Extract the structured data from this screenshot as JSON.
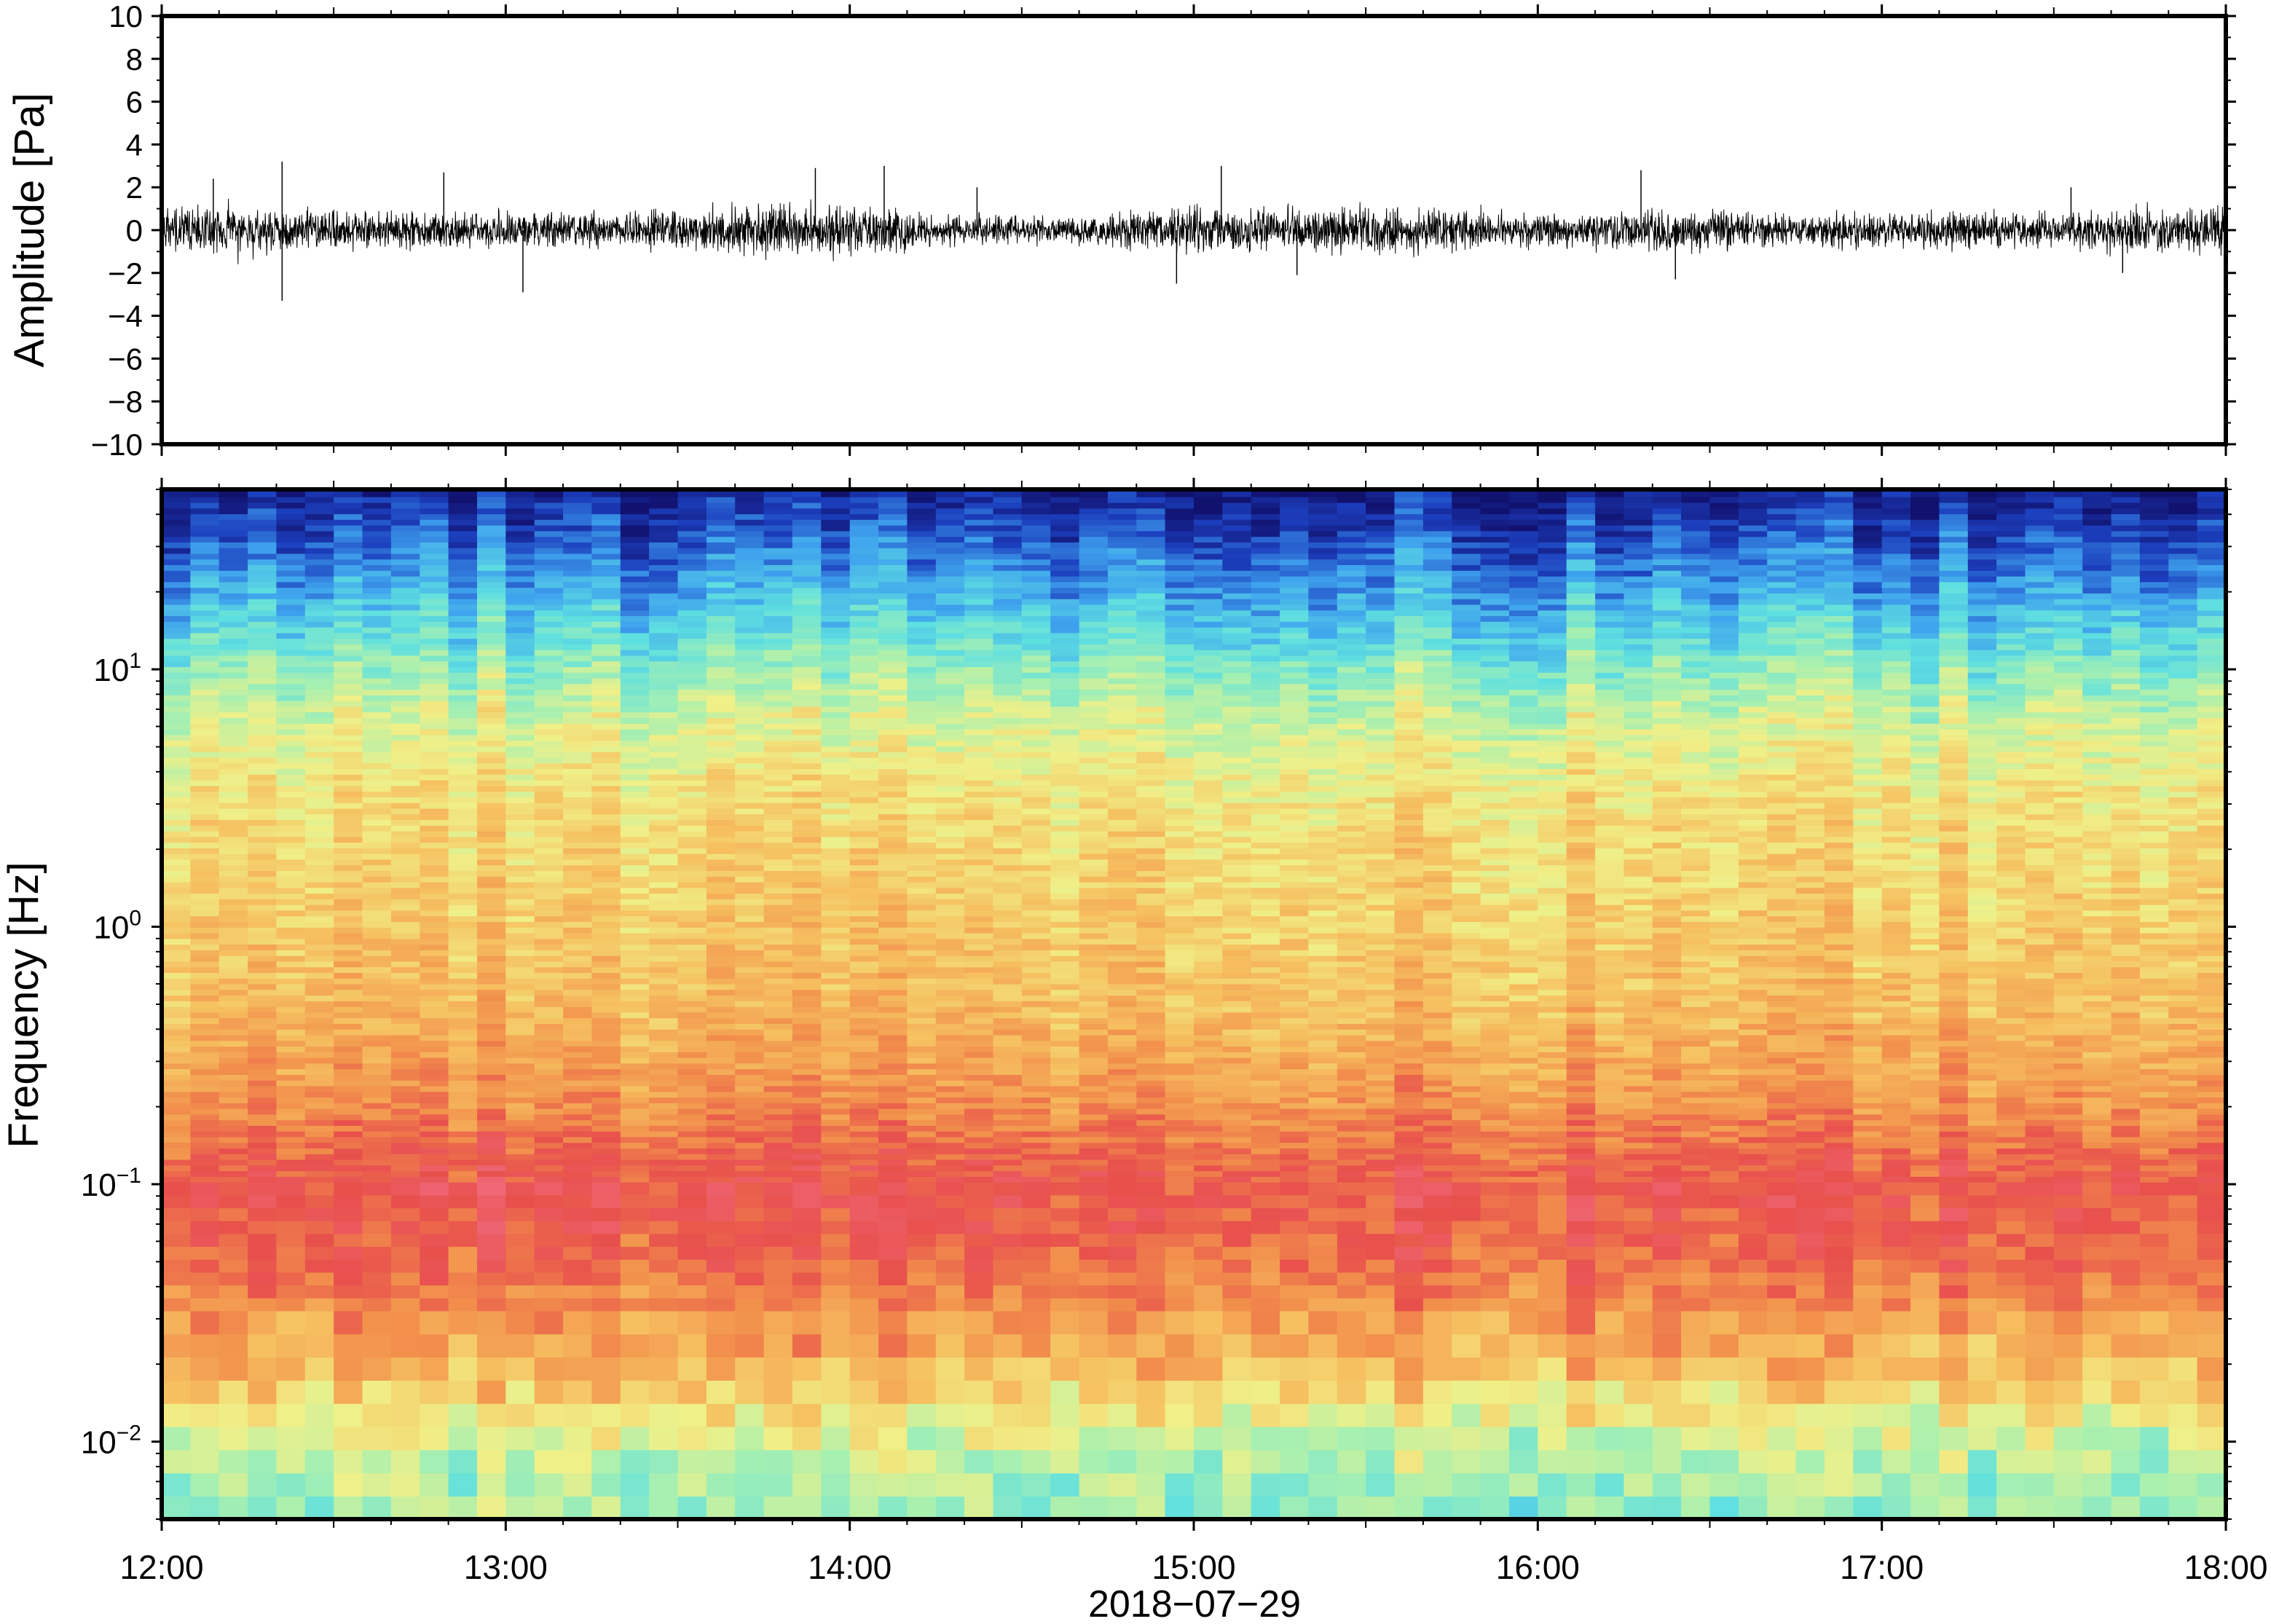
{
  "chart_data": [
    {
      "type": "line",
      "panel": "waveform",
      "ylabel": "Amplitude [Pa]",
      "ylim": [
        -10,
        10
      ],
      "yticks": [
        10,
        8,
        6,
        4,
        2,
        0,
        -2,
        -4,
        -6,
        -8,
        -10
      ],
      "ytick_labels": [
        "10",
        "8",
        "6",
        "4",
        "2",
        "0",
        "−2",
        "−4",
        "−6",
        "−8",
        "−10"
      ],
      "xlim": [
        "12:00",
        "18:00"
      ],
      "series_color": "#000000",
      "envelope": {
        "x_hours": [
          12.0,
          12.25,
          12.5,
          12.75,
          13.0,
          13.25,
          13.5,
          13.75,
          14.0,
          14.25,
          14.5,
          14.75,
          15.0,
          15.25,
          15.5,
          15.75,
          16.0,
          16.25,
          16.5,
          16.75,
          17.0,
          17.25,
          17.5,
          17.75,
          18.0
        ],
        "typical_amplitude": [
          0.9,
          1.0,
          0.7,
          0.8,
          0.7,
          0.7,
          0.8,
          1.0,
          1.0,
          0.6,
          0.5,
          0.6,
          0.9,
          0.9,
          0.9,
          0.8,
          0.6,
          0.7,
          0.8,
          0.6,
          0.7,
          0.7,
          0.6,
          0.9,
          1.0
        ]
      },
      "spikes": [
        {
          "t": 12.35,
          "v": 3.2
        },
        {
          "t": 12.35,
          "v": -3.3
        },
        {
          "t": 13.05,
          "v": -2.9
        },
        {
          "t": 12.82,
          "v": 2.7
        },
        {
          "t": 14.1,
          "v": 3.0
        },
        {
          "t": 13.9,
          "v": 2.9
        },
        {
          "t": 15.08,
          "v": 3.0
        },
        {
          "t": 14.95,
          "v": -2.5
        },
        {
          "t": 16.3,
          "v": 2.8
        },
        {
          "t": 16.4,
          "v": -2.3
        },
        {
          "t": 17.7,
          "v": -2.0
        },
        {
          "t": 12.15,
          "v": 2.4
        },
        {
          "t": 15.3,
          "v": -2.1
        },
        {
          "t": 17.55,
          "v": 2.0
        },
        {
          "t": 14.37,
          "v": 2.0
        }
      ]
    },
    {
      "type": "heatmap",
      "panel": "spectrogram",
      "ylabel": "Frequency [Hz]",
      "yscale": "log",
      "ylim": [
        0.005,
        50
      ],
      "yticks": [
        0.01,
        0.1,
        1,
        10
      ],
      "ytick_labels": [
        {
          "base": "10",
          "exp": "−2"
        },
        {
          "base": "10",
          "exp": "−1"
        },
        {
          "base": "10",
          "exp": "0"
        },
        {
          "base": "10",
          "exp": "1"
        }
      ],
      "xlabel": "2018−07−29",
      "xticks": [
        "12:00",
        "13:00",
        "14:00",
        "15:00",
        "16:00",
        "17:00",
        "18:00"
      ],
      "colormap": "rainbow (blue = low power, red = high power)",
      "colormap_stops": [
        "#11116e",
        "#1c3fbe",
        "#3fa3ee",
        "#5fe0e0",
        "#a8f0b0",
        "#f0f088",
        "#f6c060",
        "#f2904c",
        "#e8504c",
        "#f06878"
      ],
      "profile_by_log_frequency": {
        "log10_freq": [
          -2.3,
          -2.0,
          -1.7,
          -1.3,
          -1.0,
          -0.7,
          -0.3,
          0.0,
          0.5,
          0.85,
          1.0,
          1.3,
          1.7
        ],
        "relative_power": [
          0.42,
          0.5,
          0.7,
          0.85,
          0.9,
          0.78,
          0.68,
          0.65,
          0.6,
          0.5,
          0.42,
          0.25,
          0.05
        ]
      }
    }
  ]
}
